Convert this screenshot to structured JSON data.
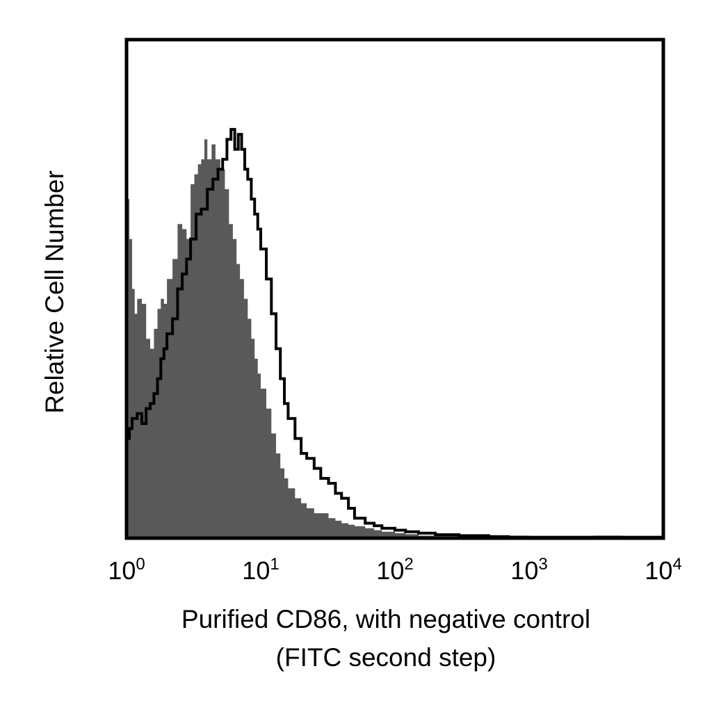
{
  "chart_data": {
    "type": "histogram",
    "title": "",
    "xlabel_line1": "Purified CD86, with negative control",
    "xlabel_line2": "(FITC second step)",
    "ylabel": "Relative Cell Number",
    "x_scale": "log",
    "xlim": [
      1,
      10000
    ],
    "ylim": [
      0,
      100
    ],
    "grid": false,
    "legend": "none",
    "x_ticks": [
      {
        "base": "10",
        "exp": "0",
        "value": 1
      },
      {
        "base": "10",
        "exp": "1",
        "value": 10
      },
      {
        "base": "10",
        "exp": "2",
        "value": 100
      },
      {
        "base": "10",
        "exp": "3",
        "value": 1000
      },
      {
        "base": "10",
        "exp": "4",
        "value": 10000
      }
    ],
    "series": [
      {
        "style": "filled",
        "color": "#595959",
        "x": [
          1.0,
          1.05,
          1.1,
          1.15,
          1.2,
          1.3,
          1.4,
          1.5,
          1.6,
          1.7,
          1.8,
          1.9,
          2.0,
          2.2,
          2.4,
          2.6,
          2.8,
          3.0,
          3.2,
          3.4,
          3.6,
          3.8,
          4.0,
          4.3,
          4.6,
          5.0,
          5.4,
          5.8,
          6.2,
          6.6,
          7.0,
          7.5,
          8.0,
          8.5,
          9.0,
          9.5,
          10.0,
          11,
          12,
          13,
          14,
          15,
          16,
          18,
          20,
          22,
          25,
          28,
          32,
          36,
          40,
          45,
          50,
          60,
          70,
          80,
          100,
          120,
          150,
          200,
          300,
          500,
          700,
          1000,
          2000,
          3000,
          5000,
          7000,
          10000
        ],
        "y": [
          68,
          60,
          50,
          45,
          48,
          47,
          40,
          38,
          42,
          46,
          48,
          47,
          52,
          56,
          63,
          62,
          60,
          71,
          73,
          75,
          76,
          80,
          76,
          79,
          76,
          74,
          70,
          63,
          60,
          55,
          52,
          48,
          44,
          40,
          36,
          33,
          30,
          26,
          21,
          17,
          14,
          12,
          10,
          8,
          7,
          6,
          5,
          5,
          4,
          3.5,
          3,
          2.7,
          2.4,
          2,
          1.6,
          1.3,
          1.0,
          0.8,
          0.5,
          0.4,
          0.3,
          0.3,
          0.5,
          0.3,
          0.3,
          0.5,
          0.4,
          0.3,
          0.2
        ]
      },
      {
        "style": "outline",
        "color": "#000000",
        "x": [
          1.0,
          1.05,
          1.1,
          1.2,
          1.3,
          1.4,
          1.5,
          1.6,
          1.7,
          1.8,
          1.9,
          2.0,
          2.2,
          2.4,
          2.6,
          2.8,
          3.0,
          3.3,
          3.6,
          4.0,
          4.4,
          4.8,
          5.2,
          5.6,
          6.0,
          6.4,
          6.8,
          7.2,
          7.6,
          8.0,
          8.5,
          9.0,
          9.5,
          10.0,
          11,
          12,
          13,
          14,
          15,
          16,
          18,
          20,
          22,
          25,
          28,
          32,
          36,
          40,
          45,
          50,
          60,
          70,
          80,
          100,
          120,
          150,
          200,
          300,
          500,
          700,
          1000,
          10000
        ],
        "y": [
          20,
          22,
          24,
          25,
          23,
          26,
          27,
          29,
          32,
          36,
          38,
          41,
          44,
          50,
          53,
          56,
          60,
          65,
          66,
          70,
          72,
          74,
          76,
          80,
          82,
          78,
          81,
          78,
          74,
          72,
          68,
          65,
          62,
          58,
          52,
          45,
          38,
          32,
          27,
          24,
          20,
          17,
          16,
          14,
          12,
          11,
          9,
          8,
          6,
          4,
          3,
          2.5,
          2,
          1.6,
          1.3,
          1.0,
          0.7,
          0.5,
          0.3,
          0.2,
          0.2,
          0.2
        ]
      }
    ]
  }
}
